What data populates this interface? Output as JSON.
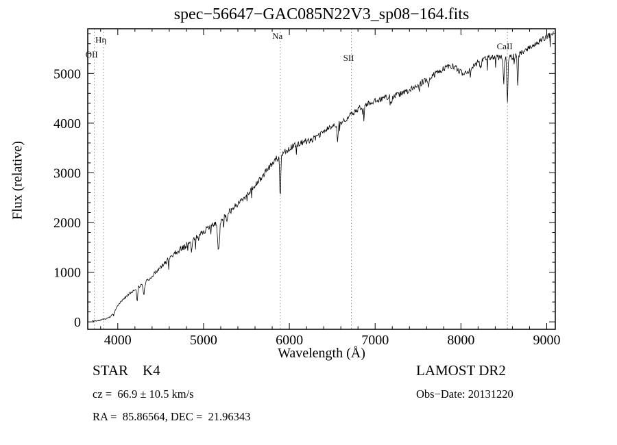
{
  "chart_data": {
    "type": "line",
    "title": "spec−56647−GAC085N22V3_sp08−164.fits",
    "xlabel": "Wavelength (Å)",
    "ylabel": "Flux (relative)",
    "xlim": [
      3650,
      9100
    ],
    "ylim": [
      -150,
      5900
    ],
    "x_ticks": [
      4000,
      5000,
      6000,
      7000,
      8000,
      9000
    ],
    "y_ticks": [
      0,
      1000,
      2000,
      3000,
      4000,
      5000
    ],
    "x_minor_step": 200,
    "y_minor_step": 200,
    "grid": false,
    "legend": "none",
    "line_color": "#000000",
    "spectral_lines": [
      {
        "label": "Hη",
        "wavelength": 3835,
        "label_y": 5620
      },
      {
        "label": "OII",
        "wavelength": 3727,
        "label_y": 5320
      },
      {
        "label": "Na",
        "wavelength": 5893,
        "label_y": 5690
      },
      {
        "label": "SII",
        "wavelength": 6723,
        "label_y": 5250
      },
      {
        "label": "CaII",
        "wavelength": 8542,
        "label_y": 5490
      }
    ],
    "series": [
      {
        "name": "spectrum",
        "range": [
          3700,
          9085
        ],
        "step": 6,
        "anchors": [
          [
            3700,
            15
          ],
          [
            3780,
            25
          ],
          [
            3840,
            55
          ],
          [
            3900,
            85
          ],
          [
            3950,
            160
          ],
          [
            4000,
            330
          ],
          [
            4060,
            450
          ],
          [
            4120,
            545
          ],
          [
            4180,
            625
          ],
          [
            4240,
            700
          ],
          [
            4300,
            765
          ],
          [
            4360,
            850
          ],
          [
            4420,
            960
          ],
          [
            4480,
            1060
          ],
          [
            4540,
            1165
          ],
          [
            4600,
            1280
          ],
          [
            4660,
            1380
          ],
          [
            4720,
            1455
          ],
          [
            4780,
            1525
          ],
          [
            4840,
            1595
          ],
          [
            4900,
            1685
          ],
          [
            4960,
            1765
          ],
          [
            5020,
            1845
          ],
          [
            5080,
            1915
          ],
          [
            5140,
            1965
          ],
          [
            5200,
            2060
          ],
          [
            5260,
            2165
          ],
          [
            5320,
            2255
          ],
          [
            5380,
            2345
          ],
          [
            5440,
            2445
          ],
          [
            5500,
            2550
          ],
          [
            5560,
            2665
          ],
          [
            5620,
            2785
          ],
          [
            5680,
            2915
          ],
          [
            5740,
            3055
          ],
          [
            5800,
            3185
          ],
          [
            5860,
            3310
          ],
          [
            5920,
            3400
          ],
          [
            5980,
            3470
          ],
          [
            6040,
            3530
          ],
          [
            6100,
            3580
          ],
          [
            6160,
            3620
          ],
          [
            6220,
            3650
          ],
          [
            6280,
            3680
          ],
          [
            6340,
            3740
          ],
          [
            6400,
            3830
          ],
          [
            6460,
            3900
          ],
          [
            6520,
            3950
          ],
          [
            6580,
            4000
          ],
          [
            6640,
            4060
          ],
          [
            6700,
            4140
          ],
          [
            6760,
            4220
          ],
          [
            6820,
            4300
          ],
          [
            6880,
            4360
          ],
          [
            6940,
            4410
          ],
          [
            7000,
            4450
          ],
          [
            7060,
            4490
          ],
          [
            7120,
            4515
          ],
          [
            7180,
            4535
          ],
          [
            7240,
            4555
          ],
          [
            7300,
            4590
          ],
          [
            7360,
            4635
          ],
          [
            7420,
            4690
          ],
          [
            7480,
            4750
          ],
          [
            7540,
            4810
          ],
          [
            7600,
            4870
          ],
          [
            7660,
            4940
          ],
          [
            7720,
            5010
          ],
          [
            7780,
            5080
          ],
          [
            7840,
            5130
          ],
          [
            7900,
            5150
          ],
          [
            7960,
            5080
          ],
          [
            8020,
            5000
          ],
          [
            8080,
            5050
          ],
          [
            8140,
            5130
          ],
          [
            8200,
            5230
          ],
          [
            8260,
            5300
          ],
          [
            8320,
            5330
          ],
          [
            8380,
            5330
          ],
          [
            8440,
            5320
          ],
          [
            8500,
            5310
          ],
          [
            8560,
            5320
          ],
          [
            8620,
            5340
          ],
          [
            8680,
            5390
          ],
          [
            8740,
            5450
          ],
          [
            8800,
            5520
          ],
          [
            8860,
            5590
          ],
          [
            8920,
            5650
          ],
          [
            8980,
            5710
          ],
          [
            9040,
            5780
          ],
          [
            9085,
            5830
          ]
        ]
      }
    ],
    "dips": [
      {
        "x": 4226,
        "depth": 260,
        "width": 8
      },
      {
        "x": 4305,
        "depth": 200,
        "width": 12
      },
      {
        "x": 4861,
        "depth": 240,
        "width": 9
      },
      {
        "x": 5175,
        "depth": 560,
        "width": 16
      },
      {
        "x": 5270,
        "depth": 180,
        "width": 10
      },
      {
        "x": 5893,
        "depth": 880,
        "width": 9
      },
      {
        "x": 6563,
        "depth": 360,
        "width": 9
      },
      {
        "x": 6870,
        "depth": 150,
        "width": 9
      },
      {
        "x": 7190,
        "depth": 160,
        "width": 12
      },
      {
        "x": 7620,
        "depth": 170,
        "width": 11
      },
      {
        "x": 8230,
        "depth": 140,
        "width": 12
      },
      {
        "x": 8498,
        "depth": 520,
        "width": 8
      },
      {
        "x": 8542,
        "depth": 860,
        "width": 9
      },
      {
        "x": 8662,
        "depth": 560,
        "width": 8
      }
    ],
    "noise": {
      "seed": 11,
      "amplitude": 60,
      "spike_prob": 0.045,
      "spike_max": 230
    }
  },
  "annotations": {
    "class_label": "STAR    K4",
    "survey": "LAMOST DR2",
    "cz": "cz =  66.9 ± 10.5 km/s",
    "obs_date": "Obs−Date: 20131220",
    "radec": "RA =  85.86564, DEC =  21.96343"
  }
}
